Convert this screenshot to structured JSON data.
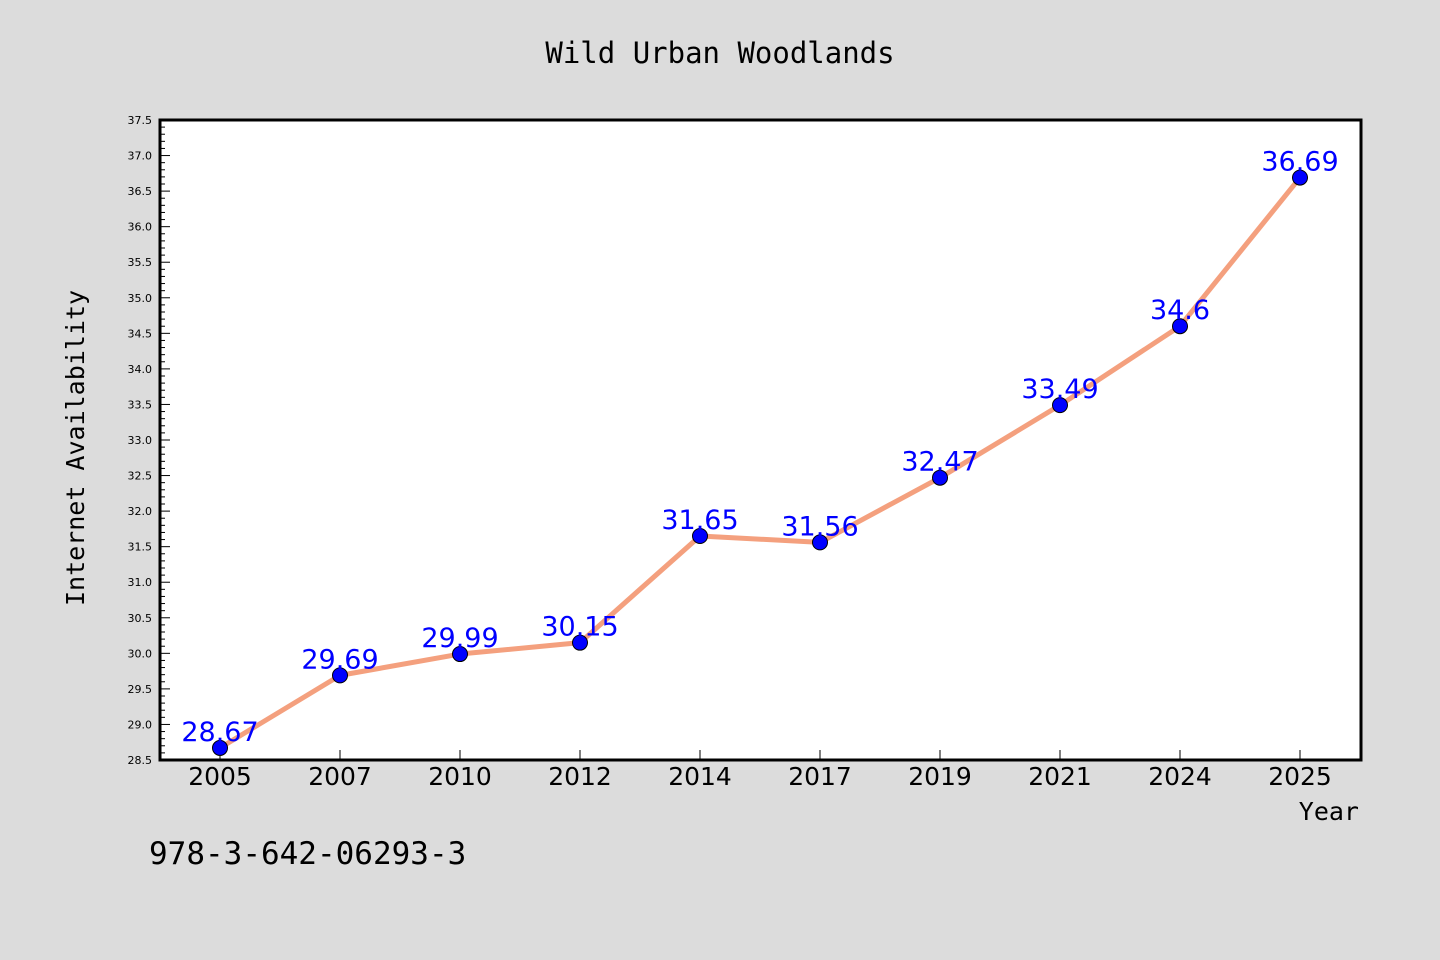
{
  "chart_data": {
    "type": "line",
    "title": "Wild Urban Woodlands",
    "xlabel": "Year",
    "ylabel": "Internet Availability",
    "categories": [
      "2005",
      "2007",
      "2010",
      "2012",
      "2014",
      "2017",
      "2019",
      "2021",
      "2024",
      "2025"
    ],
    "series": [
      {
        "values": [
          28.67,
          29.69,
          29.99,
          30.15,
          31.65,
          31.56,
          32.47,
          33.49,
          34.6,
          36.69
        ],
        "value_labels": [
          "28.67",
          "29.69",
          "29.99",
          "30.15",
          "31.65",
          "31.56",
          "32.47",
          "33.49",
          "34.6",
          "36.69"
        ]
      }
    ],
    "ylim": [
      28.5,
      37.5
    ],
    "yticks": [
      "28.5",
      "29.0",
      "29.5",
      "30.0",
      "30.5",
      "31.0",
      "31.5",
      "32.0",
      "32.5",
      "33.0",
      "33.5",
      "34.0",
      "34.5",
      "35.0",
      "35.5",
      "36.0",
      "36.5",
      "37.0",
      "37.5"
    ],
    "grid": false,
    "legend": "none",
    "colors": {
      "line": "#f4a07e",
      "marker": "#0000ff",
      "data_label": "#0000ff",
      "background": "#dcdcdc",
      "plot_area": "#ffffff"
    }
  },
  "footer": {
    "isbn": "978-3-642-06293-3"
  }
}
